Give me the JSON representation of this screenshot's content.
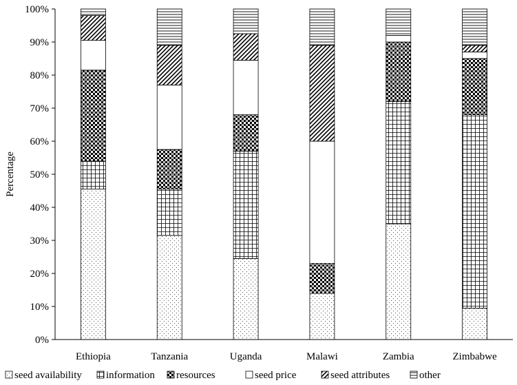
{
  "chart_data": {
    "type": "bar",
    "stacked": true,
    "percent": true,
    "ylabel": "Percentage",
    "xlabel": "",
    "ylim": [
      0,
      100
    ],
    "yticks": [
      "0%",
      "10%",
      "20%",
      "30%",
      "40%",
      "50%",
      "60%",
      "70%",
      "80%",
      "90%",
      "100%"
    ],
    "categories": [
      "Ethiopia",
      "Tanzania",
      "Uganda",
      "Malawi",
      "Zambia",
      "Zimbabwe"
    ],
    "legend_position": "bottom",
    "grid": false,
    "series": [
      {
        "name": "seed availability",
        "pattern": "dots",
        "values": [
          45.5,
          31.5,
          24.5,
          14.0,
          35.0,
          9.5
        ]
      },
      {
        "name": "information",
        "pattern": "grid",
        "values": [
          8.5,
          14.0,
          32.5,
          0.0,
          37.0,
          58.5
        ]
      },
      {
        "name": "resources",
        "pattern": "checker",
        "values": [
          27.5,
          12.0,
          11.0,
          9.0,
          18.0,
          17.0
        ]
      },
      {
        "name": "seed price",
        "pattern": "blank",
        "values": [
          9.0,
          19.5,
          16.5,
          37.0,
          2.0,
          2.0
        ]
      },
      {
        "name": "seed attributes",
        "pattern": "diagonal",
        "values": [
          7.5,
          12.0,
          8.0,
          29.0,
          0.0,
          2.0
        ]
      },
      {
        "name": "other",
        "pattern": "horizontal",
        "values": [
          2.0,
          11.0,
          7.5,
          11.0,
          8.0,
          11.0
        ]
      }
    ]
  }
}
